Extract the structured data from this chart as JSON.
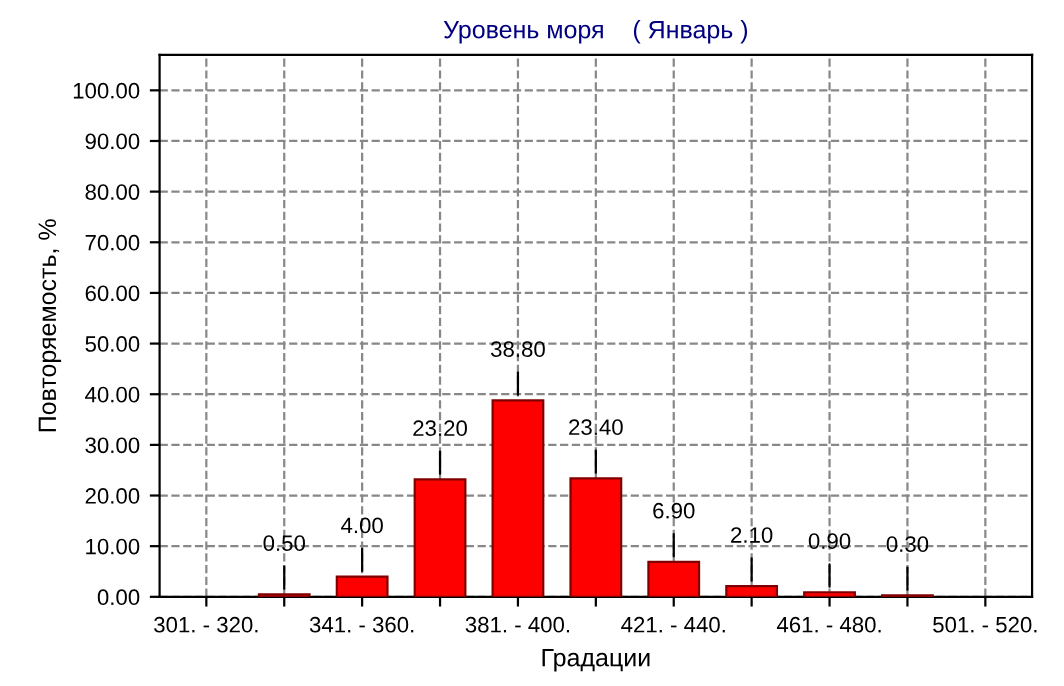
{
  "chart_data": {
    "type": "bar",
    "title": "Уровень моря    ( Январь )",
    "xlabel": "Градации",
    "ylabel": "Повторяемость, %",
    "categories": [
      "301. - 320.",
      null,
      "341. - 360.",
      null,
      "381. - 400.",
      null,
      "421. - 440.",
      null,
      "461. - 480.",
      null,
      "501. - 520."
    ],
    "values": [
      null,
      0.5,
      4.0,
      23.2,
      38.8,
      23.4,
      6.9,
      2.1,
      0.9,
      0.3,
      null
    ],
    "value_labels": [
      null,
      "0.50",
      "4.00",
      "23.20",
      "38.80",
      "23.40",
      "6.90",
      "2.10",
      "0.90",
      "0.30",
      null
    ],
    "color": "#ff0000",
    "ylim": [
      0,
      107
    ],
    "yticks": [
      {
        "value": 0,
        "label": "0.00"
      },
      {
        "value": 10,
        "label": "10.00"
      },
      {
        "value": 20,
        "label": "20.00"
      },
      {
        "value": 30,
        "label": "30.00"
      },
      {
        "value": 40,
        "label": "40.00"
      },
      {
        "value": 50,
        "label": "50.00"
      },
      {
        "value": 60,
        "label": "60.00"
      },
      {
        "value": 70,
        "label": "70.00"
      },
      {
        "value": 80,
        "label": "80.00"
      },
      {
        "value": 90,
        "label": "90.00"
      },
      {
        "value": 100,
        "label": "100.00"
      }
    ],
    "grid": true
  }
}
